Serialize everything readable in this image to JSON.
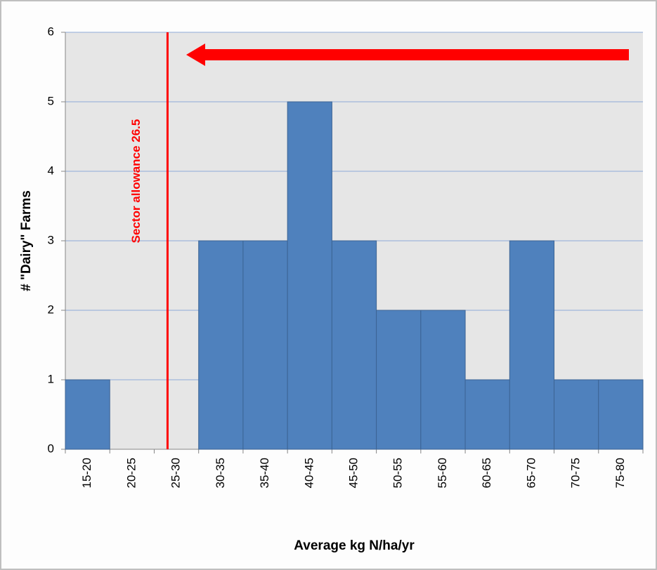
{
  "chart_data": {
    "type": "bar",
    "categories": [
      "15-20",
      "20-25",
      "25-30",
      "30-35",
      "35-40",
      "40-45",
      "45-50",
      "50-55",
      "55-60",
      "60-65",
      "65-70",
      "70-75",
      "75-80"
    ],
    "values": [
      1,
      0,
      0,
      3,
      3,
      5,
      3,
      2,
      2,
      1,
      3,
      1,
      1
    ],
    "color": "#4f81bd",
    "xlabel": "Average kg N/ha/yr",
    "ylabel": "# \"Dairy\" Farms",
    "ylim": [
      0,
      6
    ],
    "yticks": [
      0,
      1,
      2,
      3,
      4,
      5,
      6
    ],
    "grid": true,
    "xlim": [
      15,
      80
    ],
    "reference_line": {
      "value": 26.5,
      "label": "Sector allowance 26.5",
      "color": "#ff0000"
    }
  }
}
